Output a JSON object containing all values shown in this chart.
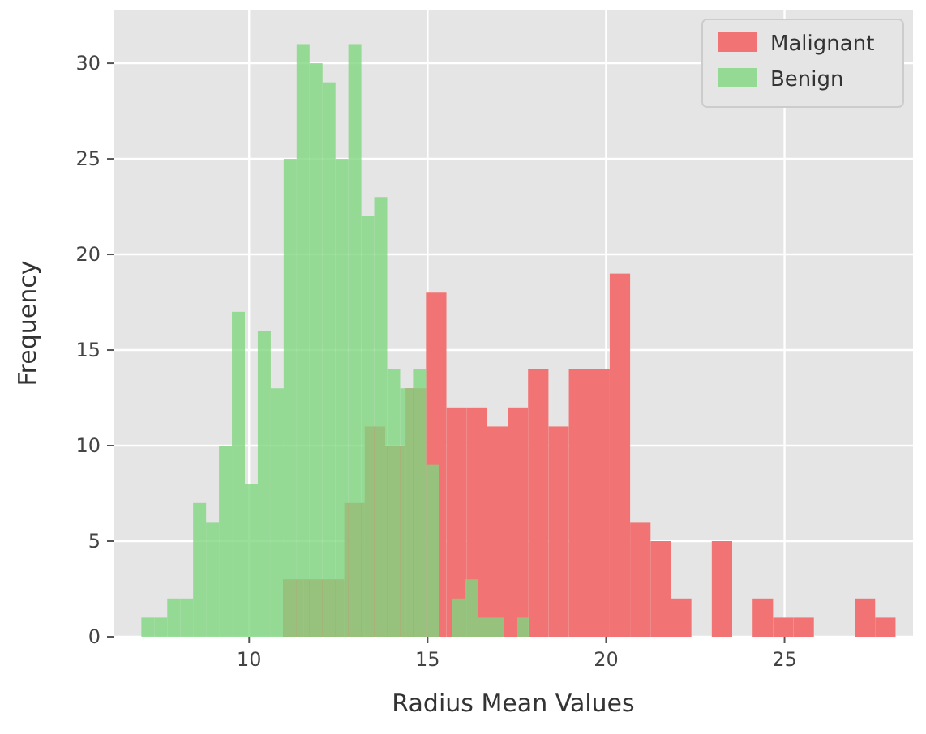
{
  "chart_data": {
    "type": "histogram",
    "xlabel": "Radius Mean Values",
    "ylabel": "Frequency",
    "xlim": [
      6.2,
      28.6
    ],
    "ylim": [
      0,
      32.8
    ],
    "xticks": [
      10,
      15,
      20,
      25
    ],
    "yticks": [
      0,
      5,
      10,
      15,
      20,
      25,
      30
    ],
    "grid": true,
    "legend": "top right",
    "bins": [
      10.95,
      11.522,
      12.094,
      12.666,
      13.238,
      13.81,
      14.382,
      14.954,
      15.526,
      16.098,
      16.67,
      17.242,
      17.814,
      18.386,
      18.958,
      19.53,
      20.102,
      20.674,
      21.246,
      21.818,
      22.39,
      22.962,
      23.534,
      24.106,
      24.678,
      25.25,
      25.822,
      26.394,
      26.966,
      27.538,
      28.11
    ],
    "series": [
      {
        "name": "Malignant",
        "color": "#f27373",
        "values": [
          3,
          3,
          3,
          7,
          11,
          10,
          13,
          18,
          12,
          12,
          11,
          12,
          14,
          11,
          14,
          14,
          19,
          6,
          5,
          2,
          0,
          5,
          0,
          2,
          1,
          1,
          0,
          0,
          2,
          1
        ]
      },
      {
        "name": "Benign",
        "color": "#7fd67f",
        "bins": [
          6.981,
          7.343,
          7.706,
          8.068,
          8.431,
          8.793,
          9.156,
          9.518,
          9.88,
          10.243,
          10.605,
          10.968,
          11.33,
          11.693,
          12.055,
          12.418,
          12.78,
          13.142,
          13.505,
          13.867,
          14.23,
          14.592,
          14.955,
          15.317,
          15.679,
          16.042,
          16.404,
          16.767,
          17.129,
          17.492,
          17.854
        ],
        "values": [
          1,
          1,
          2,
          2,
          7,
          6,
          10,
          17,
          8,
          16,
          13,
          25,
          31,
          30,
          29,
          25,
          31,
          22,
          23,
          14,
          13,
          14,
          9,
          0,
          2,
          3,
          1,
          1,
          0,
          1
        ]
      }
    ]
  }
}
